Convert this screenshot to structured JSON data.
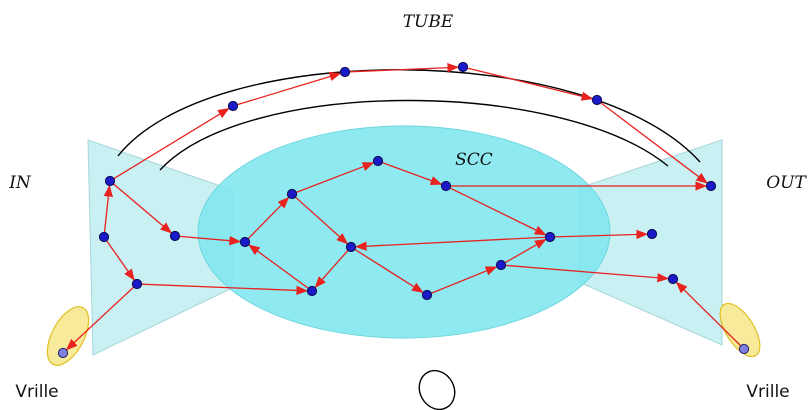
{
  "labels": {
    "tube": "TUBE",
    "scc": "SCC",
    "in": "IN",
    "out": "OUT",
    "tendril_left": "Vrille",
    "tendril_right": "Vrille"
  },
  "colors": {
    "edge": "#e8221f",
    "node": "#1a1ac8",
    "region_fill": "#bfeff2",
    "scc_fill": "#7fe6ee",
    "tendril_fill": "#f7ea9a",
    "tendril_stroke": "#e0c020"
  },
  "nodes": [
    {
      "id": "in_top"
    },
    {
      "id": "in_left"
    },
    {
      "id": "in_bottom"
    },
    {
      "id": "in_mid"
    },
    {
      "id": "tube_1"
    },
    {
      "id": "tube_2"
    },
    {
      "id": "tube_3"
    },
    {
      "id": "tube_4"
    },
    {
      "id": "scc_a"
    },
    {
      "id": "scc_b"
    },
    {
      "id": "scc_c"
    },
    {
      "id": "scc_d"
    },
    {
      "id": "scc_e"
    },
    {
      "id": "scc_f"
    },
    {
      "id": "scc_g"
    },
    {
      "id": "scc_h"
    },
    {
      "id": "scc_i"
    },
    {
      "id": "scc_j"
    },
    {
      "id": "out_top"
    },
    {
      "id": "out_mid"
    },
    {
      "id": "out_bottom"
    },
    {
      "id": "tendril_left_node"
    },
    {
      "id": "tendril_right_node"
    }
  ],
  "edges": [
    [
      "in_left",
      "in_top"
    ],
    [
      "in_top",
      "tube_1"
    ],
    [
      "tube_1",
      "tube_2"
    ],
    [
      "tube_2",
      "tube_3"
    ],
    [
      "tube_3",
      "tube_4"
    ],
    [
      "tube_4",
      "out_top"
    ],
    [
      "in_top",
      "in_mid"
    ],
    [
      "in_mid",
      "scc_a"
    ],
    [
      "in_left",
      "in_bottom"
    ],
    [
      "in_bottom",
      "tendril_left_node"
    ],
    [
      "in_bottom",
      "scc_e"
    ],
    [
      "scc_a",
      "scc_b"
    ],
    [
      "scc_b",
      "scc_c"
    ],
    [
      "scc_c",
      "scc_d"
    ],
    [
      "scc_d",
      "out_top"
    ],
    [
      "scc_d",
      "scc_g"
    ],
    [
      "scc_b",
      "scc_f"
    ],
    [
      "scc_f",
      "scc_e"
    ],
    [
      "scc_e",
      "scc_a"
    ],
    [
      "scc_g",
      "scc_f"
    ],
    [
      "scc_f",
      "scc_h"
    ],
    [
      "scc_h",
      "scc_i"
    ],
    [
      "scc_i",
      "scc_g"
    ],
    [
      "scc_g",
      "out_mid"
    ],
    [
      "scc_i",
      "out_bottom"
    ],
    [
      "tendril_right_node",
      "out_bottom"
    ]
  ]
}
